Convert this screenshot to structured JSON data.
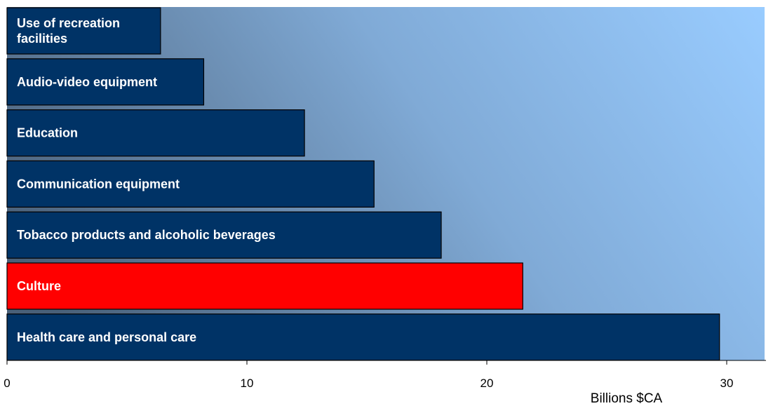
{
  "chart_data": {
    "type": "bar",
    "orientation": "horizontal",
    "categories": [
      [
        "Use of recreation",
        "facilities"
      ],
      [
        "Audio-video equipment"
      ],
      [
        "Education"
      ],
      [
        "Communication equipment"
      ],
      [
        "Tobacco products and alcoholic beverages"
      ],
      [
        "Culture"
      ],
      [
        "Health care and personal care"
      ]
    ],
    "values": [
      6.4,
      8.2,
      12.4,
      15.3,
      18.1,
      21.5,
      29.7
    ],
    "highlight_index": 5,
    "xlabel": "Billions $CA",
    "xlim": [
      0,
      32
    ],
    "xticks": [
      0,
      10,
      20,
      30
    ],
    "grid": false,
    "legend": "none",
    "colors": {
      "bar": "#003366",
      "highlight": "#ff0000",
      "bar_label": "#ffffff",
      "background_light": "#99ccff",
      "background_dark": "#4a6078"
    }
  }
}
